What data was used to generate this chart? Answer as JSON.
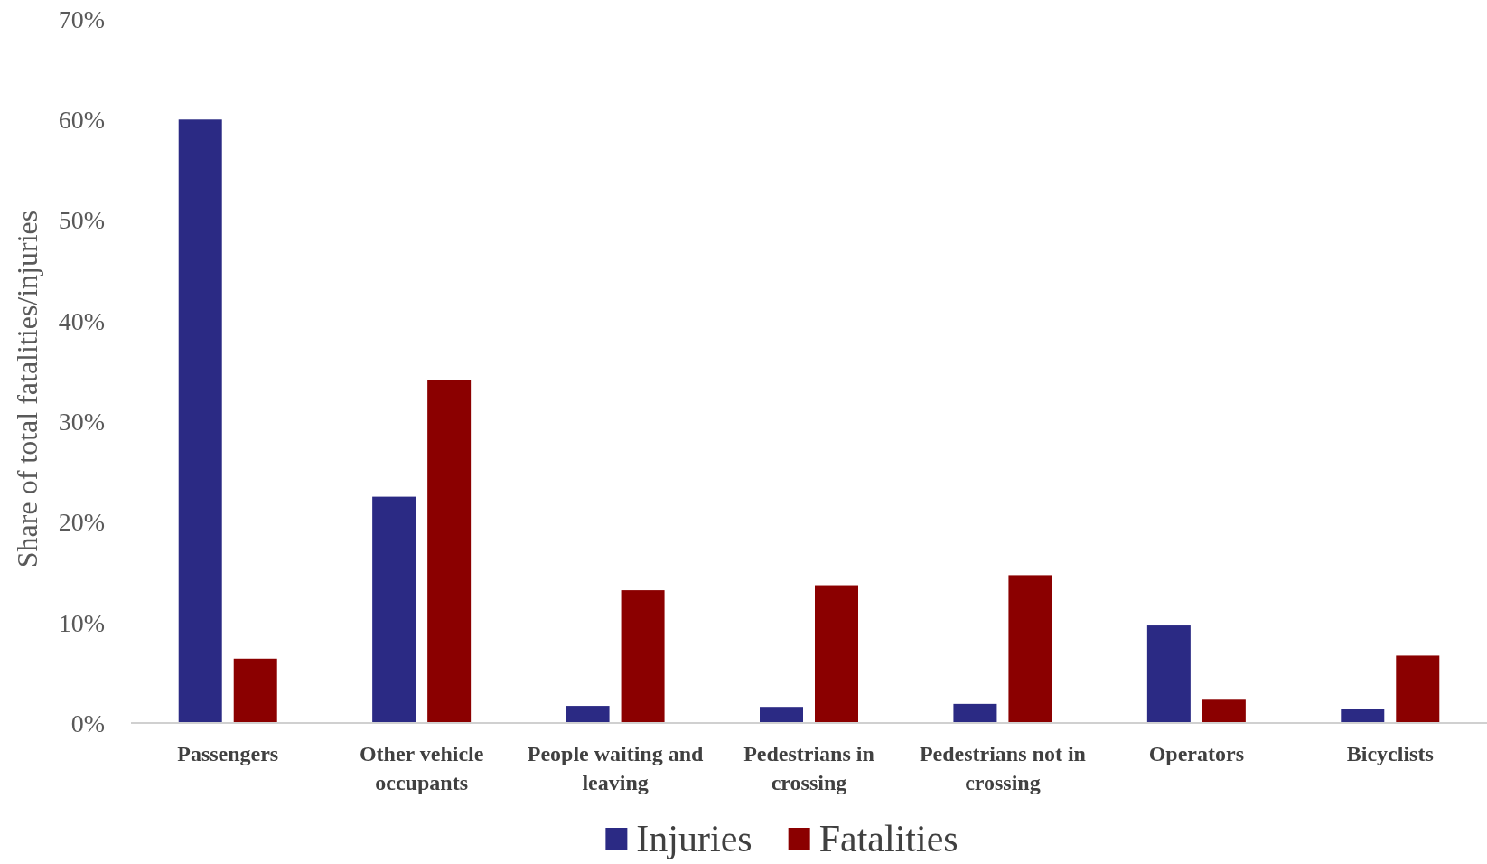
{
  "chart_data": {
    "type": "bar",
    "ylabel": "Share of total fatalities/injuries",
    "categories": [
      "Passengers",
      "Other vehicle occupants",
      "People waiting and leaving",
      "Pedestrians in crossing",
      "Pedestrians not in crossing",
      "Operators",
      "Bicyclists"
    ],
    "series": [
      {
        "name": "Injuries",
        "color": "#2b2a84",
        "values": [
          60.0,
          22.5,
          1.7,
          1.6,
          1.9,
          9.7,
          1.4
        ]
      },
      {
        "name": "Fatalities",
        "color": "#8b0000",
        "values": [
          6.4,
          34.1,
          13.2,
          13.7,
          14.7,
          2.4,
          6.7
        ]
      }
    ],
    "ylim": [
      0,
      70
    ],
    "yticks": [
      {
        "value": 0,
        "label": "0%"
      },
      {
        "value": 10,
        "label": "10%"
      },
      {
        "value": 20,
        "label": "20%"
      },
      {
        "value": 30,
        "label": "30%"
      },
      {
        "value": 40,
        "label": "40%"
      },
      {
        "value": 50,
        "label": "50%"
      },
      {
        "value": 60,
        "label": "60%"
      },
      {
        "value": 70,
        "label": "70%"
      }
    ],
    "grid": false,
    "legend": "bottom"
  }
}
